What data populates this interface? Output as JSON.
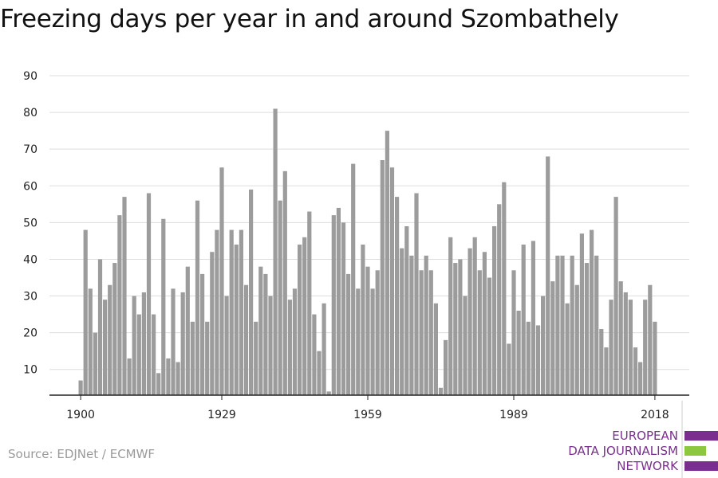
{
  "colors": {
    "bar": "#9c9c9c",
    "grid": "#dddddd",
    "axis": "#222222",
    "logo_purple": "#7a2f8f",
    "logo_green": "#8dc63f"
  },
  "title": "Freezing days per year in and around Szombathely",
  "source": "Source: EDJNet / ECMWF",
  "logo": {
    "line1": "EUROPEAN",
    "line2": "DATA JOURNALISM",
    "line3": "NETWORK"
  },
  "chart_data": {
    "type": "bar",
    "title": "Freezing days per year in and around Szombathely",
    "xlabel": "",
    "ylabel": "",
    "ylim": [
      3,
      90
    ],
    "yticks": [
      10,
      20,
      30,
      40,
      50,
      60,
      70,
      80,
      90
    ],
    "xticks": [
      1900,
      1929,
      1959,
      1989,
      2018
    ],
    "grid": true,
    "legend": "none",
    "x_start": 1900,
    "x_end": 2018,
    "values": [
      7,
      48,
      32,
      20,
      40,
      29,
      33,
      39,
      52,
      57,
      13,
      30,
      25,
      31,
      58,
      25,
      9,
      51,
      13,
      32,
      12,
      31,
      38,
      23,
      56,
      36,
      23,
      42,
      48,
      65,
      30,
      48,
      44,
      48,
      33,
      59,
      23,
      38,
      36,
      30,
      81,
      56,
      64,
      29,
      32,
      44,
      46,
      53,
      25,
      15,
      28,
      4,
      52,
      54,
      50,
      36,
      66,
      32,
      44,
      38,
      32,
      37,
      67,
      75,
      65,
      57,
      43,
      49,
      41,
      58,
      37,
      41,
      37,
      28,
      5,
      18,
      46,
      39,
      40,
      30,
      43,
      46,
      37,
      42,
      35,
      49,
      55,
      61,
      17,
      37,
      26,
      44,
      23,
      45,
      22,
      30,
      68,
      34,
      41,
      41,
      28,
      41,
      33,
      47,
      39,
      48,
      41,
      21,
      16,
      29,
      57,
      34,
      31,
      29,
      16,
      12,
      29,
      33,
      23
    ]
  }
}
